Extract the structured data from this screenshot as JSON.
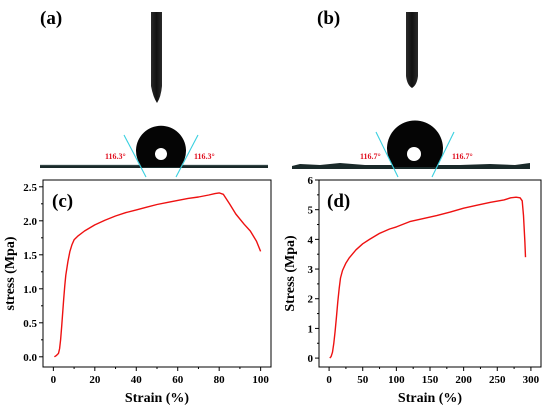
{
  "photos": [
    {
      "letter": "(a)",
      "angle_left": "116.3°",
      "angle_right": "116.3°"
    },
    {
      "letter": "(b)",
      "angle_left": "116.7°",
      "angle_right": "116.7°"
    }
  ],
  "chart_data": [
    {
      "type": "line",
      "letter": "(c)",
      "title": "",
      "xlabel": "Strain (%)",
      "ylabel": "stress (Mpa)",
      "xlim": [
        -5,
        105
      ],
      "ylim": [
        -0.15,
        2.6
      ],
      "xticks": [
        0,
        20,
        40,
        60,
        80,
        100
      ],
      "yticks": [
        0.0,
        0.5,
        1.0,
        1.5,
        2.0,
        2.5
      ],
      "ytick_labels": [
        "0.0",
        "0.5",
        "1.0",
        "1.5",
        "2.0",
        "2.5"
      ],
      "grid": false,
      "color": "#ee1111",
      "series": [
        {
          "x": [
            0.5,
            1.5,
            2.5,
            3.0,
            3.5,
            4.0,
            4.5,
            5.0,
            5.5,
            6.0,
            7.0,
            8.0,
            9.0,
            10.0,
            12.0,
            15.0,
            20.0,
            25.0,
            30.0,
            35.0,
            40.0,
            45.0,
            50.0,
            55.0,
            60.0,
            65.0,
            70.0,
            75.0,
            78.0,
            80.0,
            82.0,
            85.0,
            88.0,
            92.0,
            95.0,
            98.0,
            100.0
          ],
          "y": [
            0.0,
            0.02,
            0.05,
            0.12,
            0.25,
            0.45,
            0.65,
            0.85,
            1.05,
            1.2,
            1.4,
            1.55,
            1.65,
            1.72,
            1.78,
            1.85,
            1.94,
            2.01,
            2.07,
            2.12,
            2.16,
            2.2,
            2.24,
            2.27,
            2.3,
            2.33,
            2.35,
            2.38,
            2.4,
            2.41,
            2.39,
            2.25,
            2.1,
            1.95,
            1.85,
            1.7,
            1.55
          ]
        }
      ]
    },
    {
      "type": "line",
      "letter": "(d)",
      "title": "",
      "xlabel": "Strain (%)",
      "ylabel": "Stress (Mpa)",
      "xlim": [
        -15,
        315
      ],
      "ylim": [
        -0.3,
        6.0
      ],
      "xticks": [
        0,
        50,
        100,
        150,
        200,
        250,
        300
      ],
      "yticks": [
        0,
        1,
        2,
        3,
        4,
        5,
        6
      ],
      "ytick_labels": [
        "0",
        "1",
        "2",
        "3",
        "4",
        "5",
        "6"
      ],
      "grid": false,
      "color": "#ee1111",
      "series": [
        {
          "x": [
            1,
            3,
            5,
            7,
            9,
            11,
            13,
            15,
            17,
            20,
            25,
            30,
            40,
            50,
            60,
            75,
            90,
            100,
            120,
            140,
            160,
            180,
            200,
            220,
            240,
            260,
            270,
            278,
            284,
            287,
            289,
            291,
            292
          ],
          "y": [
            0.0,
            0.05,
            0.2,
            0.5,
            0.9,
            1.4,
            1.9,
            2.35,
            2.7,
            2.95,
            3.2,
            3.38,
            3.65,
            3.85,
            4.0,
            4.2,
            4.35,
            4.42,
            4.6,
            4.7,
            4.8,
            4.92,
            5.05,
            5.15,
            5.25,
            5.33,
            5.4,
            5.42,
            5.4,
            5.3,
            4.8,
            3.9,
            3.4
          ]
        }
      ]
    }
  ]
}
